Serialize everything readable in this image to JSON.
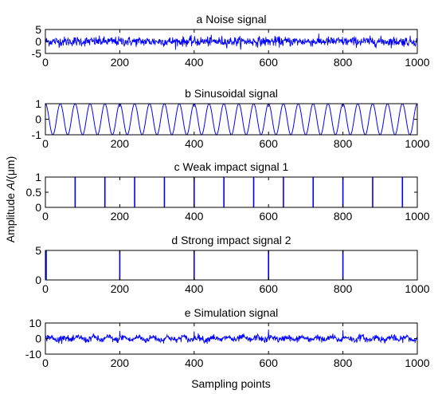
{
  "chart_data": {
    "type": "line",
    "shared_ylabel": {
      "prefix": "Amplitude ",
      "var": "A",
      "suffix": "/(",
      "unit_greek": "μ",
      "unit_rest": "m)"
    },
    "xlabel": "Sampling points",
    "color": "#0000ff",
    "panels": [
      {
        "title": "a  Noise signal",
        "signal": "noise",
        "xlim": [
          0,
          1000
        ],
        "ylim": [
          -5,
          5
        ],
        "xticks": [
          0,
          200,
          400,
          600,
          800,
          1000
        ],
        "yticks": [
          -5,
          0,
          5
        ],
        "noise_sigma": 1.0
      },
      {
        "title": "b  Sinusoidal signal",
        "signal": "sine",
        "xlim": [
          0,
          1000
        ],
        "ylim": [
          -1,
          1
        ],
        "xticks": [
          0,
          200,
          400,
          600,
          800,
          1000
        ],
        "yticks": [
          -1,
          0,
          1
        ],
        "amplitude": 1,
        "period": 40,
        "cycles": 25
      },
      {
        "title": "c  Weak impact signal 1",
        "signal": "impacts",
        "xlim": [
          0,
          1000
        ],
        "ylim": [
          0,
          1
        ],
        "xticks": [
          0,
          200,
          400,
          600,
          800,
          1000
        ],
        "yticks": [
          0,
          0.5,
          1
        ],
        "impact_height": 1,
        "impact_positions": [
          80,
          160,
          240,
          320,
          400,
          480,
          560,
          640,
          720,
          800,
          880,
          960
        ]
      },
      {
        "title": "d  Strong impact signal 2",
        "signal": "impacts",
        "xlim": [
          0,
          1000
        ],
        "ylim": [
          0,
          5
        ],
        "xticks": [
          0,
          200,
          400,
          600,
          800,
          1000
        ],
        "yticks": [
          0,
          5
        ],
        "impact_height": 5,
        "impact_positions": [
          0,
          200,
          400,
          600,
          800
        ]
      },
      {
        "title": "e  Simulation signal",
        "signal": "simulation",
        "xlim": [
          0,
          1000
        ],
        "ylim": [
          -10,
          10
        ],
        "xticks": [
          0,
          200,
          400,
          600,
          800,
          1000
        ],
        "yticks": [
          -10,
          0,
          10
        ],
        "noise_sigma": 1.0,
        "sine_amplitude": 1,
        "period": 40,
        "impact_positions": [
          200,
          400,
          600,
          800
        ],
        "impact_height": 5
      }
    ]
  }
}
